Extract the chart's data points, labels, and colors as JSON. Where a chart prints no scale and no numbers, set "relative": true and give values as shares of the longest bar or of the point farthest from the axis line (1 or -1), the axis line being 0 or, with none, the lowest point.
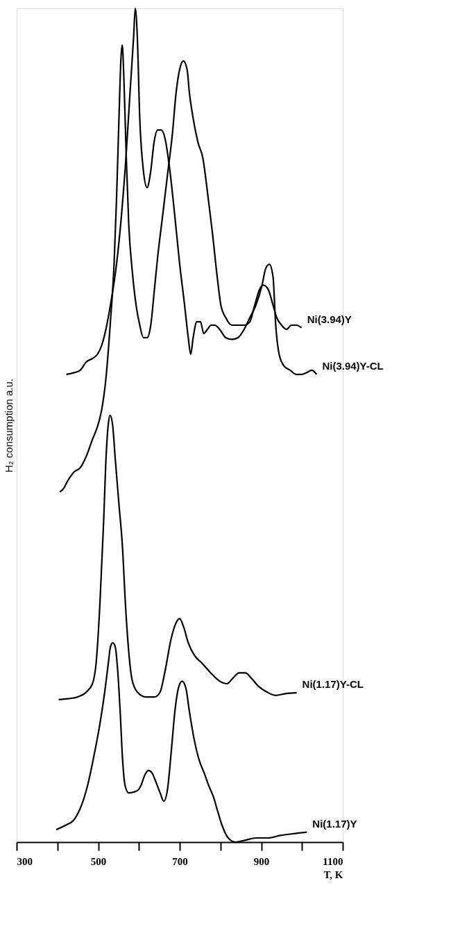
{
  "chart_data": {
    "type": "line",
    "relative": true,
    "xlabel": "T, K",
    "ylabel": "H₂ consumption a.u.",
    "xlim": [
      300,
      1100
    ],
    "xticks": [
      300,
      {
        "value": 400,
        "label": null
      },
      500,
      {
        "value": 600,
        "label": null
      },
      700,
      {
        "value": 800,
        "label": null
      },
      900,
      {
        "value": 1000,
        "label": null
      },
      1100
    ],
    "grid": false,
    "tick_labels": "x",
    "marker": "none",
    "line_style": "solid",
    "series": [
      {
        "name": "Ni(3.94)Y-CL",
        "color": "#000000",
        "x": [
          422,
          441,
          456,
          471,
          486,
          498,
          508,
          519,
          530,
          545,
          557,
          568,
          578,
          587,
          591,
          596,
          602,
          611,
          620,
          629,
          637,
          646,
          655,
          664,
          676,
          688,
          700,
          712,
          721,
          727,
          733,
          742,
          751,
          759,
          768,
          777,
          786,
          798,
          813,
          828,
          843,
          858,
          872,
          887,
          902,
          911,
          920,
          929,
          935,
          944,
          956,
          971,
          986,
          999,
          1011,
          1024,
          1036
        ],
        "values": [
          0.561,
          0.563,
          0.566,
          0.576,
          0.58,
          0.585,
          0.595,
          0.615,
          0.644,
          0.693,
          0.751,
          0.82,
          0.898,
          0.966,
          1,
          0.966,
          0.868,
          0.805,
          0.785,
          0.805,
          0.839,
          0.854,
          0.854,
          0.844,
          0.805,
          0.751,
          0.693,
          0.644,
          0.605,
          0.585,
          0.605,
          0.624,
          0.624,
          0.61,
          0.615,
          0.62,
          0.62,
          0.615,
          0.605,
          0.603,
          0.605,
          0.615,
          0.629,
          0.644,
          0.668,
          0.688,
          0.693,
          0.678,
          0.624,
          0.585,
          0.571,
          0.566,
          0.561,
          0.561,
          0.563,
          0.566,
          0.561
        ]
      },
      {
        "name": "Ni(3.94)Y",
        "color": "#000000",
        "x": [
          406,
          415,
          426,
          441,
          456,
          471,
          486,
          498,
          508,
          519,
          530,
          539,
          545,
          551,
          556,
          559,
          563,
          569,
          575,
          584,
          593,
          602,
          611,
          620,
          629,
          638,
          646,
          658,
          670,
          682,
          691,
          700,
          709,
          718,
          724,
          733,
          745,
          757,
          768,
          780,
          792,
          801,
          813,
          828,
          843,
          858,
          872,
          884,
          896,
          905,
          917,
          929,
          938,
          950,
          962,
          974,
          986,
          999
        ],
        "values": [
          0.42,
          0.424,
          0.434,
          0.444,
          0.449,
          0.463,
          0.483,
          0.498,
          0.517,
          0.556,
          0.624,
          0.693,
          0.771,
          0.868,
          0.941,
          0.956,
          0.917,
          0.82,
          0.741,
          0.683,
          0.644,
          0.62,
          0.605,
          0.605,
          0.62,
          0.663,
          0.702,
          0.751,
          0.8,
          0.849,
          0.898,
          0.927,
          0.937,
          0.927,
          0.898,
          0.868,
          0.839,
          0.82,
          0.78,
          0.732,
          0.678,
          0.644,
          0.629,
          0.62,
          0.62,
          0.62,
          0.624,
          0.644,
          0.663,
          0.668,
          0.663,
          0.644,
          0.629,
          0.62,
          0.615,
          0.62,
          0.62,
          0.617
        ]
      },
      {
        "name": "Ni(1.17)Y-CL",
        "color": "#000000",
        "x": [
          403,
          426,
          449,
          471,
          486,
          495,
          504,
          513,
          520,
          525,
          529,
          535,
          542,
          551,
          560,
          566,
          574,
          583,
          596,
          617,
          638,
          652,
          664,
          679,
          691,
          700,
          709,
          721,
          736,
          754,
          776,
          798,
          816,
          831,
          846,
          861,
          875,
          893,
          914,
          935,
          959,
          987
        ],
        "values": [
          0.171,
          0.172,
          0.174,
          0.18,
          0.19,
          0.215,
          0.283,
          0.38,
          0.468,
          0.502,
          0.512,
          0.502,
          0.459,
          0.405,
          0.351,
          0.293,
          0.234,
          0.195,
          0.18,
          0.174,
          0.174,
          0.18,
          0.205,
          0.244,
          0.263,
          0.268,
          0.259,
          0.239,
          0.224,
          0.215,
          0.203,
          0.193,
          0.19,
          0.197,
          0.203,
          0.203,
          0.197,
          0.187,
          0.18,
          0.176,
          0.178,
          0.179
        ]
      },
      {
        "name": "Ni(1.17)Y",
        "color": "#000000",
        "x": [
          397,
          419,
          441,
          459,
          474,
          489,
          504,
          516,
          525,
          530,
          536,
          542,
          548,
          554,
          560,
          566,
          575,
          587,
          599,
          605,
          614,
          623,
          632,
          641,
          652,
          661,
          670,
          679,
          688,
          697,
          706,
          715,
          724,
          736,
          748,
          760,
          771,
          783,
          792,
          804,
          819,
          837,
          858,
          888,
          917,
          947,
          977,
          1012
        ],
        "values": [
          0.015,
          0.02,
          0.027,
          0.044,
          0.068,
          0.102,
          0.141,
          0.18,
          0.215,
          0.234,
          0.239,
          0.234,
          0.205,
          0.156,
          0.098,
          0.068,
          0.059,
          0.06,
          0.063,
          0.068,
          0.08,
          0.086,
          0.083,
          0.073,
          0.059,
          0.049,
          0.063,
          0.107,
          0.156,
          0.185,
          0.193,
          0.185,
          0.156,
          0.122,
          0.098,
          0.083,
          0.068,
          0.054,
          0.039,
          0.02,
          0.005,
          0,
          0.002,
          0.005,
          0.005,
          0.008,
          0.01,
          0.012
        ]
      }
    ]
  }
}
